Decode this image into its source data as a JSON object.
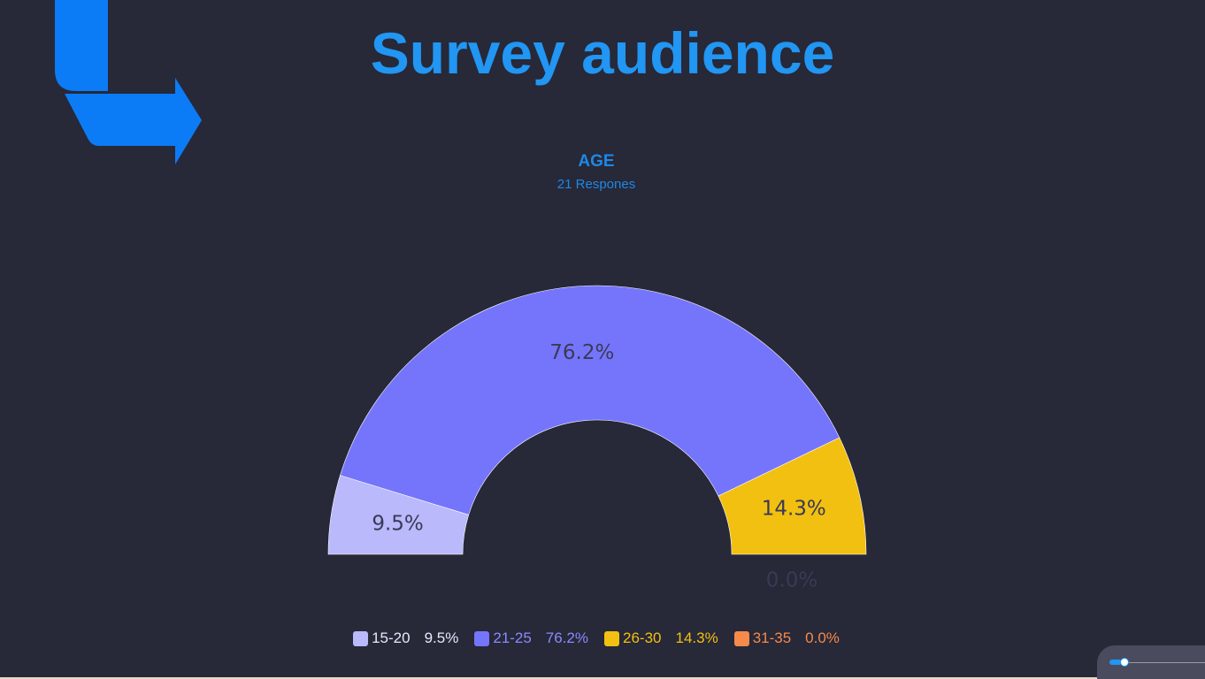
{
  "page_title": "Survey audience",
  "colors": {
    "background": "#272838",
    "accent": "#2196f3",
    "logo": "#0b7cf5"
  },
  "icons": {
    "logo": "corner-arrow-logo-icon",
    "slider": "zoom-slider-icon"
  },
  "slider": {
    "value": 0.1
  },
  "chart_data": {
    "type": "pie",
    "variant": "semi-donut",
    "title": "AGE",
    "subtitle": "21 Respones",
    "legend_position": "bottom",
    "slices": [
      {
        "label": "15-20",
        "value": 9.5,
        "display": "9.5%",
        "color": "#b9b9fc",
        "label_color": "#e8e8ff"
      },
      {
        "label": "21-25",
        "value": 76.2,
        "display": "76.2%",
        "color": "#7575fb",
        "label_color": "#8a8aff"
      },
      {
        "label": "26-30",
        "value": 14.3,
        "display": "14.3%",
        "color": "#f2c010",
        "label_color": "#f2c010"
      },
      {
        "label": "31-35",
        "value": 0.0,
        "display": "0.0%",
        "color": "#f58a4b",
        "label_color": "#f58a4b"
      }
    ]
  }
}
